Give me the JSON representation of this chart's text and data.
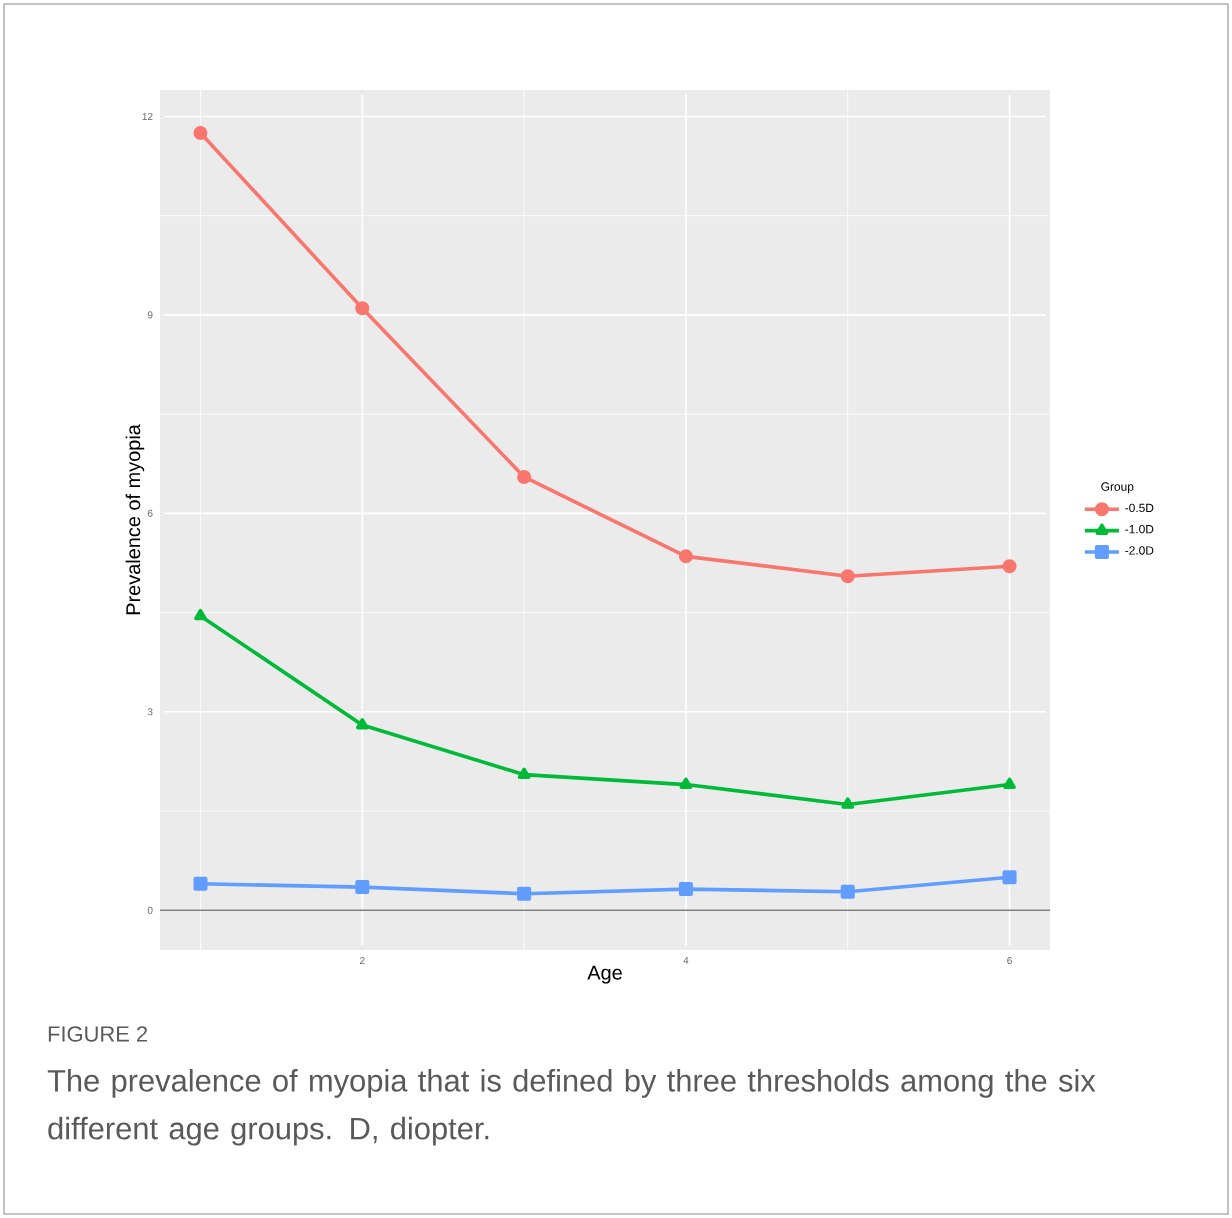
{
  "chart_data": {
    "type": "line",
    "xlabel": "Age",
    "ylabel": "Prevalence of myopia",
    "legend_title": "Group",
    "x": [
      1,
      2,
      3,
      4,
      5,
      6
    ],
    "series": [
      {
        "name": "-0.5D",
        "color": "#f8766d",
        "marker": "circle",
        "values": [
          11.75,
          9.1,
          6.55,
          5.35,
          5.05,
          5.2
        ]
      },
      {
        "name": "-1.0D",
        "color": "#00ba38",
        "marker": "triangle",
        "values": [
          4.45,
          2.8,
          2.05,
          1.9,
          1.6,
          1.9
        ]
      },
      {
        "name": "-2.0D",
        "color": "#619cff",
        "marker": "square",
        "values": [
          0.4,
          0.35,
          0.25,
          0.32,
          0.28,
          0.5
        ]
      }
    ],
    "xlim": [
      0.75,
      6.25
    ],
    "ylim": [
      -0.6,
      12.4
    ],
    "xticks": [
      2,
      4,
      6
    ],
    "yticks": [
      0,
      3,
      6,
      9,
      12
    ],
    "grid": true,
    "legend": "right",
    "line_style": "solid",
    "ref_lines": [
      {
        "axis": "y",
        "value": 0,
        "color": "#808080"
      }
    ],
    "annotations": [
      "FIGURE 2",
      "The prevalence of myopia that is defined by three thresholds among the six different age groups. D, diopter."
    ]
  }
}
